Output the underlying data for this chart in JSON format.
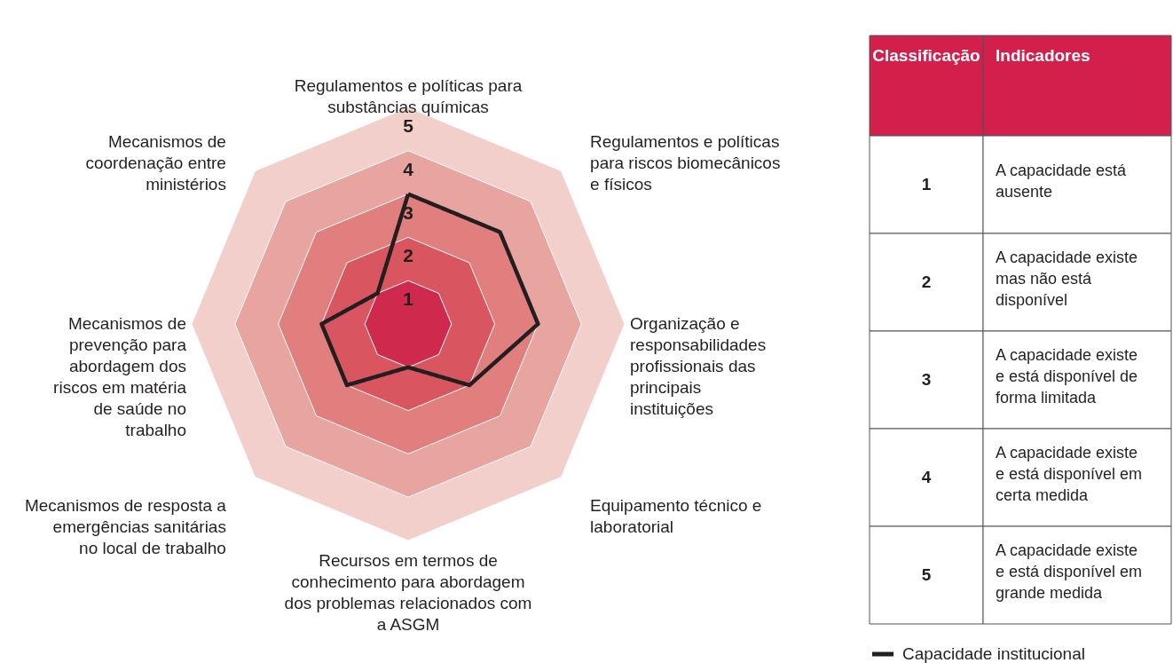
{
  "chart_data": [
    {
      "type": "radar",
      "categories": [
        "Regulamentos e políticas para substâncias químicas",
        "Regulamentos e políticas para riscos biomecânicos e físicos",
        "Organização e responsabilidades profissionais das principais instituições",
        "Equipamento técnico e laboratorial",
        "Recursos em termos de conhecimento para abordagem dos problemas relacionados com a ASGM",
        "Mecanismos de resposta a emergências sanitárias no local de trabalho",
        "Mecanismos de prevenção para abordagem dos riscos em matéria de saúde no trabalho",
        "Mecanismos de coordenação entre ministérios"
      ],
      "series": [
        {
          "name": "Capacidade institucional",
          "color": "#231f20",
          "values": [
            3,
            3,
            3,
            2,
            1,
            2,
            2,
            1
          ]
        }
      ],
      "ylim": [
        0,
        5
      ],
      "yticks": [
        1,
        2,
        3,
        4,
        5
      ],
      "legend": "bottom right",
      "marker": "none",
      "line_style": "solid",
      "annotations": [
        "Classificação",
        "Indicadores",
        "1",
        "A capacidade está ausente",
        "2",
        "A capacidade existe mas não está disponível",
        "3",
        "A capacidade existe e está disponível de forma limitada",
        "4",
        "A capacidade existe e está disponível em certa medida",
        "5",
        "A capacidade existe e está disponível em grande medida"
      ]
    }
  ]
}
